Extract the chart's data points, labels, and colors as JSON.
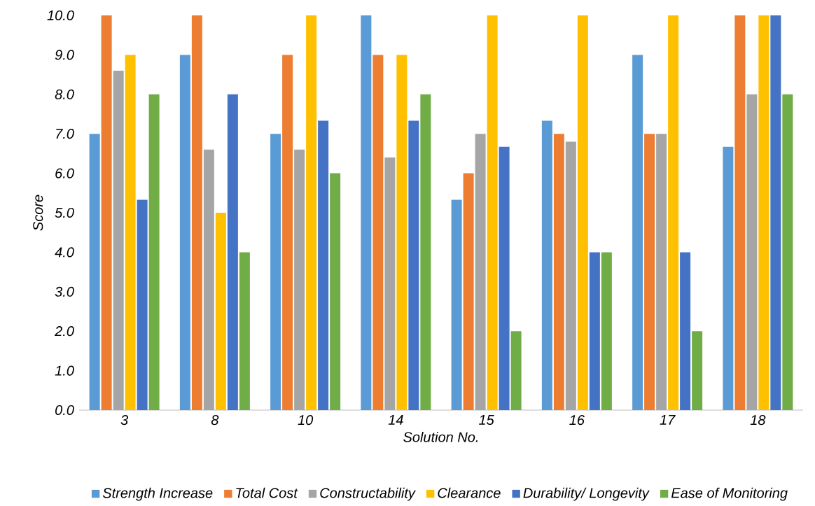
{
  "chart_data": {
    "type": "bar",
    "xlabel": "Solution No.",
    "ylabel": "Score",
    "categories": [
      "3",
      "8",
      "10",
      "14",
      "15",
      "16",
      "17",
      "18"
    ],
    "series": [
      {
        "name": "Strength Increase",
        "color": "#5b9bd5",
        "values": [
          7.0,
          9.0,
          7.0,
          10.0,
          5.33,
          7.33,
          9.0,
          6.67
        ]
      },
      {
        "name": "Total Cost",
        "color": "#ed7d31",
        "values": [
          10.0,
          10.0,
          9.0,
          9.0,
          6.0,
          7.0,
          7.0,
          10.0
        ]
      },
      {
        "name": "Constructability",
        "color": "#a5a5a5",
        "values": [
          8.6,
          6.6,
          6.6,
          6.4,
          7.0,
          6.8,
          7.0,
          8.0
        ]
      },
      {
        "name": "Clearance",
        "color": "#ffc000",
        "values": [
          9.0,
          5.0,
          10.0,
          9.0,
          10.0,
          10.0,
          10.0,
          10.0
        ]
      },
      {
        "name": "Durability/ Longevity",
        "color": "#4472c4",
        "values": [
          5.33,
          8.0,
          7.33,
          7.33,
          6.67,
          4.0,
          4.0,
          10.0
        ]
      },
      {
        "name": "Ease of Monitoring",
        "color": "#70ad47",
        "values": [
          8.0,
          4.0,
          6.0,
          8.0,
          2.0,
          4.0,
          2.0,
          8.0
        ]
      }
    ],
    "ylim": [
      0,
      10
    ],
    "yticks": [
      {
        "value": 0,
        "label": "0.0"
      },
      {
        "value": 1,
        "label": "1.0"
      },
      {
        "value": 2,
        "label": "2.0"
      },
      {
        "value": 3,
        "label": "3.0"
      },
      {
        "value": 4,
        "label": "4.0"
      },
      {
        "value": 5,
        "label": "5.0"
      },
      {
        "value": 6,
        "label": "6.0"
      },
      {
        "value": 7,
        "label": "7.0"
      },
      {
        "value": 8,
        "label": "8.0"
      },
      {
        "value": 9,
        "label": "9.0"
      },
      {
        "value": 10,
        "label": "10.0"
      }
    ],
    "grid": false,
    "legend": "bottom"
  }
}
